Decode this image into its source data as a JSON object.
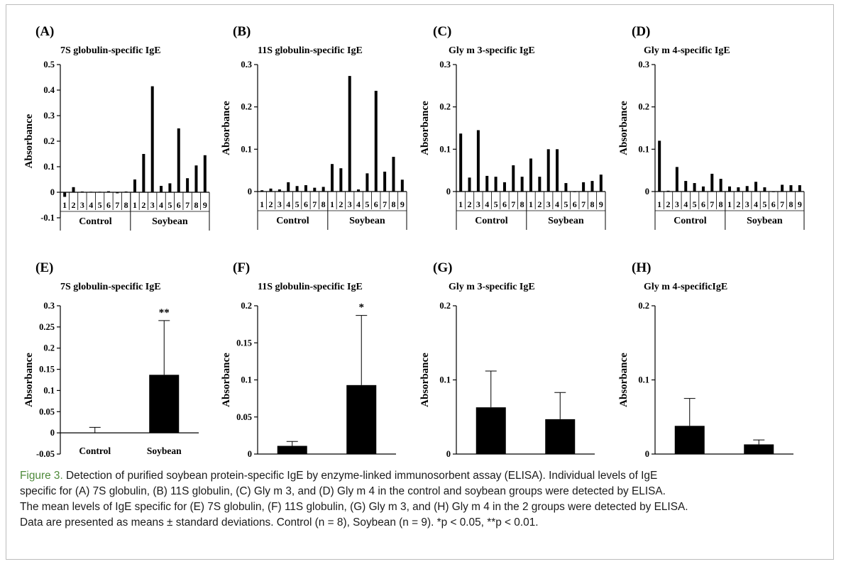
{
  "caption": {
    "label": "Figure 3.",
    "lines": [
      "Detection of purified soybean protein-specific IgE by enzyme-linked immunosorbent assay (ELISA). Individual levels of IgE",
      "specific for (A) 7S globulin, (B) 11S globulin, (C) Gly m 3, and (D) Gly m 4 in the control and soybean groups were detected by ELISA.",
      "The mean levels of IgE specific for (E) 7S globulin, (F) 11S globulin, (G) Gly m 3, and (H) Gly m 4 in the 2 groups were detected by ELISA.",
      "Data are presented as means ± standard deviations. Control (n = 8), Soybean (n = 9). *p < 0.05, **p < 0.01."
    ]
  },
  "chart_data": [
    {
      "panel": "(A)",
      "type": "bar",
      "title": "7S globulin-specific IgE",
      "ylabel": "Absorbance",
      "ylim": [
        -0.1,
        0.5
      ],
      "yticks": [
        -0.1,
        0,
        0.1,
        0.2,
        0.3,
        0.4,
        0.5
      ],
      "ytick_labels": [
        "-0.1",
        "0",
        "0.1",
        "0.2",
        "0.3",
        "0.4",
        "0.5"
      ],
      "groups": [
        {
          "name": "Control",
          "labels": [
            "1",
            "2",
            "3",
            "4",
            "5",
            "6",
            "7",
            "8"
          ],
          "values": [
            -0.018,
            0.02,
            0.003,
            0.002,
            0.002,
            0.004,
            -0.004,
            0.003
          ]
        },
        {
          "name": "Soybean",
          "labels": [
            "1",
            "2",
            "3",
            "4",
            "5",
            "6",
            "7",
            "8",
            "9"
          ],
          "values": [
            0.05,
            0.15,
            0.415,
            0.025,
            0.035,
            0.25,
            0.055,
            0.105,
            0.145
          ]
        }
      ]
    },
    {
      "panel": "(B)",
      "type": "bar",
      "title": "11S globulin-specific IgE",
      "ylabel": "Absorbance",
      "ylim": [
        0,
        0.3
      ],
      "yticks": [
        0,
        0.1,
        0.2,
        0.3
      ],
      "ytick_labels": [
        "0",
        "0.1",
        "0.2",
        "0.3"
      ],
      "groups": [
        {
          "name": "Control",
          "labels": [
            "1",
            "2",
            "3",
            "4",
            "5",
            "6",
            "7",
            "8"
          ],
          "values": [
            0.003,
            0.007,
            0.005,
            0.022,
            0.013,
            0.015,
            0.009,
            0.011
          ]
        },
        {
          "name": "Soybean",
          "labels": [
            "1",
            "2",
            "3",
            "4",
            "5",
            "6",
            "7",
            "8",
            "9"
          ],
          "values": [
            0.065,
            0.055,
            0.273,
            0.005,
            0.043,
            0.238,
            0.047,
            0.082,
            0.028
          ]
        }
      ]
    },
    {
      "panel": "(C)",
      "type": "bar",
      "title": "Gly m 3-specific IgE",
      "ylabel": "Absorbance",
      "ylim": [
        0,
        0.3
      ],
      "yticks": [
        0,
        0.1,
        0.2,
        0.3
      ],
      "ytick_labels": [
        "0",
        "0.1",
        "0.2",
        "0.3"
      ],
      "groups": [
        {
          "name": "Control",
          "labels": [
            "1",
            "2",
            "3",
            "4",
            "5",
            "6",
            "7",
            "8"
          ],
          "values": [
            0.137,
            0.033,
            0.145,
            0.037,
            0.035,
            0.022,
            0.062,
            0.035
          ]
        },
        {
          "name": "Soybean",
          "labels": [
            "1",
            "2",
            "3",
            "4",
            "5",
            "6",
            "7",
            "8",
            "9"
          ],
          "values": [
            0.078,
            0.035,
            0.1,
            0.1,
            0.02,
            0.0,
            0.022,
            0.025,
            0.04
          ]
        }
      ]
    },
    {
      "panel": "(D)",
      "type": "bar",
      "title": "Gly m 4-specific IgE",
      "ylabel": "Absorbance",
      "ylim": [
        0,
        0.3
      ],
      "yticks": [
        0,
        0.1,
        0.2,
        0.3
      ],
      "ytick_labels": [
        "0",
        "0.1",
        "0.2",
        "0.3"
      ],
      "groups": [
        {
          "name": "Control",
          "labels": [
            "1",
            "2",
            "3",
            "4",
            "5",
            "6",
            "7",
            "8"
          ],
          "values": [
            0.12,
            0.002,
            0.058,
            0.025,
            0.02,
            0.012,
            0.042,
            0.03
          ]
        },
        {
          "name": "Soybean",
          "labels": [
            "1",
            "2",
            "3",
            "4",
            "5",
            "6",
            "7",
            "8",
            "9"
          ],
          "values": [
            0.012,
            0.01,
            0.013,
            0.023,
            0.01,
            0.0,
            0.016,
            0.015,
            0.015
          ]
        }
      ]
    },
    {
      "panel": "(E)",
      "type": "bar",
      "title": "7S globulin-specific IgE",
      "ylabel": "Absorbance",
      "ylim": [
        -0.05,
        0.3
      ],
      "yticks": [
        -0.05,
        0,
        0.05,
        0.1,
        0.15,
        0.2,
        0.25,
        0.3
      ],
      "ytick_labels": [
        "-0.05",
        "0",
        "0.05",
        "0.1",
        "0.15",
        "0.2",
        "0.25",
        "0.3"
      ],
      "categories": [
        "Control",
        "Soybean"
      ],
      "values": [
        0.001,
        0.137
      ],
      "errors": [
        0.012,
        0.128
      ],
      "significance": [
        "",
        "**"
      ]
    },
    {
      "panel": "(F)",
      "type": "bar",
      "title": "11S globulin-specific IgE",
      "ylabel": "Absorbance",
      "ylim": [
        0,
        0.2
      ],
      "yticks": [
        0,
        0.05,
        0.1,
        0.15,
        0.2
      ],
      "ytick_labels": [
        "0",
        "0.05",
        "0.1",
        "0.15",
        "0.2"
      ],
      "categories": [
        "Control",
        "Soybean"
      ],
      "values": [
        0.011,
        0.093
      ],
      "errors": [
        0.006,
        0.094
      ],
      "significance": [
        "",
        "*"
      ]
    },
    {
      "panel": "(G)",
      "type": "bar",
      "title": "Gly m 3-specific IgE",
      "ylabel": "Absorbance",
      "ylim": [
        0,
        0.2
      ],
      "yticks": [
        0,
        0.1,
        0.2
      ],
      "ytick_labels": [
        "0",
        "0.1",
        "0.2"
      ],
      "categories": [
        "Control",
        "Soybean"
      ],
      "values": [
        0.063,
        0.047
      ],
      "errors": [
        0.049,
        0.036
      ],
      "significance": [
        "",
        ""
      ]
    },
    {
      "panel": "(H)",
      "type": "bar",
      "title": "Gly m 4-specificIgE",
      "ylabel": "Absorbance",
      "ylim": [
        0,
        0.2
      ],
      "yticks": [
        0,
        0.1,
        0.2
      ],
      "ytick_labels": [
        "0",
        "0.1",
        "0.2"
      ],
      "categories": [
        "Control",
        "Soybean"
      ],
      "values": [
        0.038,
        0.013
      ],
      "errors": [
        0.037,
        0.006
      ],
      "significance": [
        "",
        ""
      ]
    }
  ]
}
